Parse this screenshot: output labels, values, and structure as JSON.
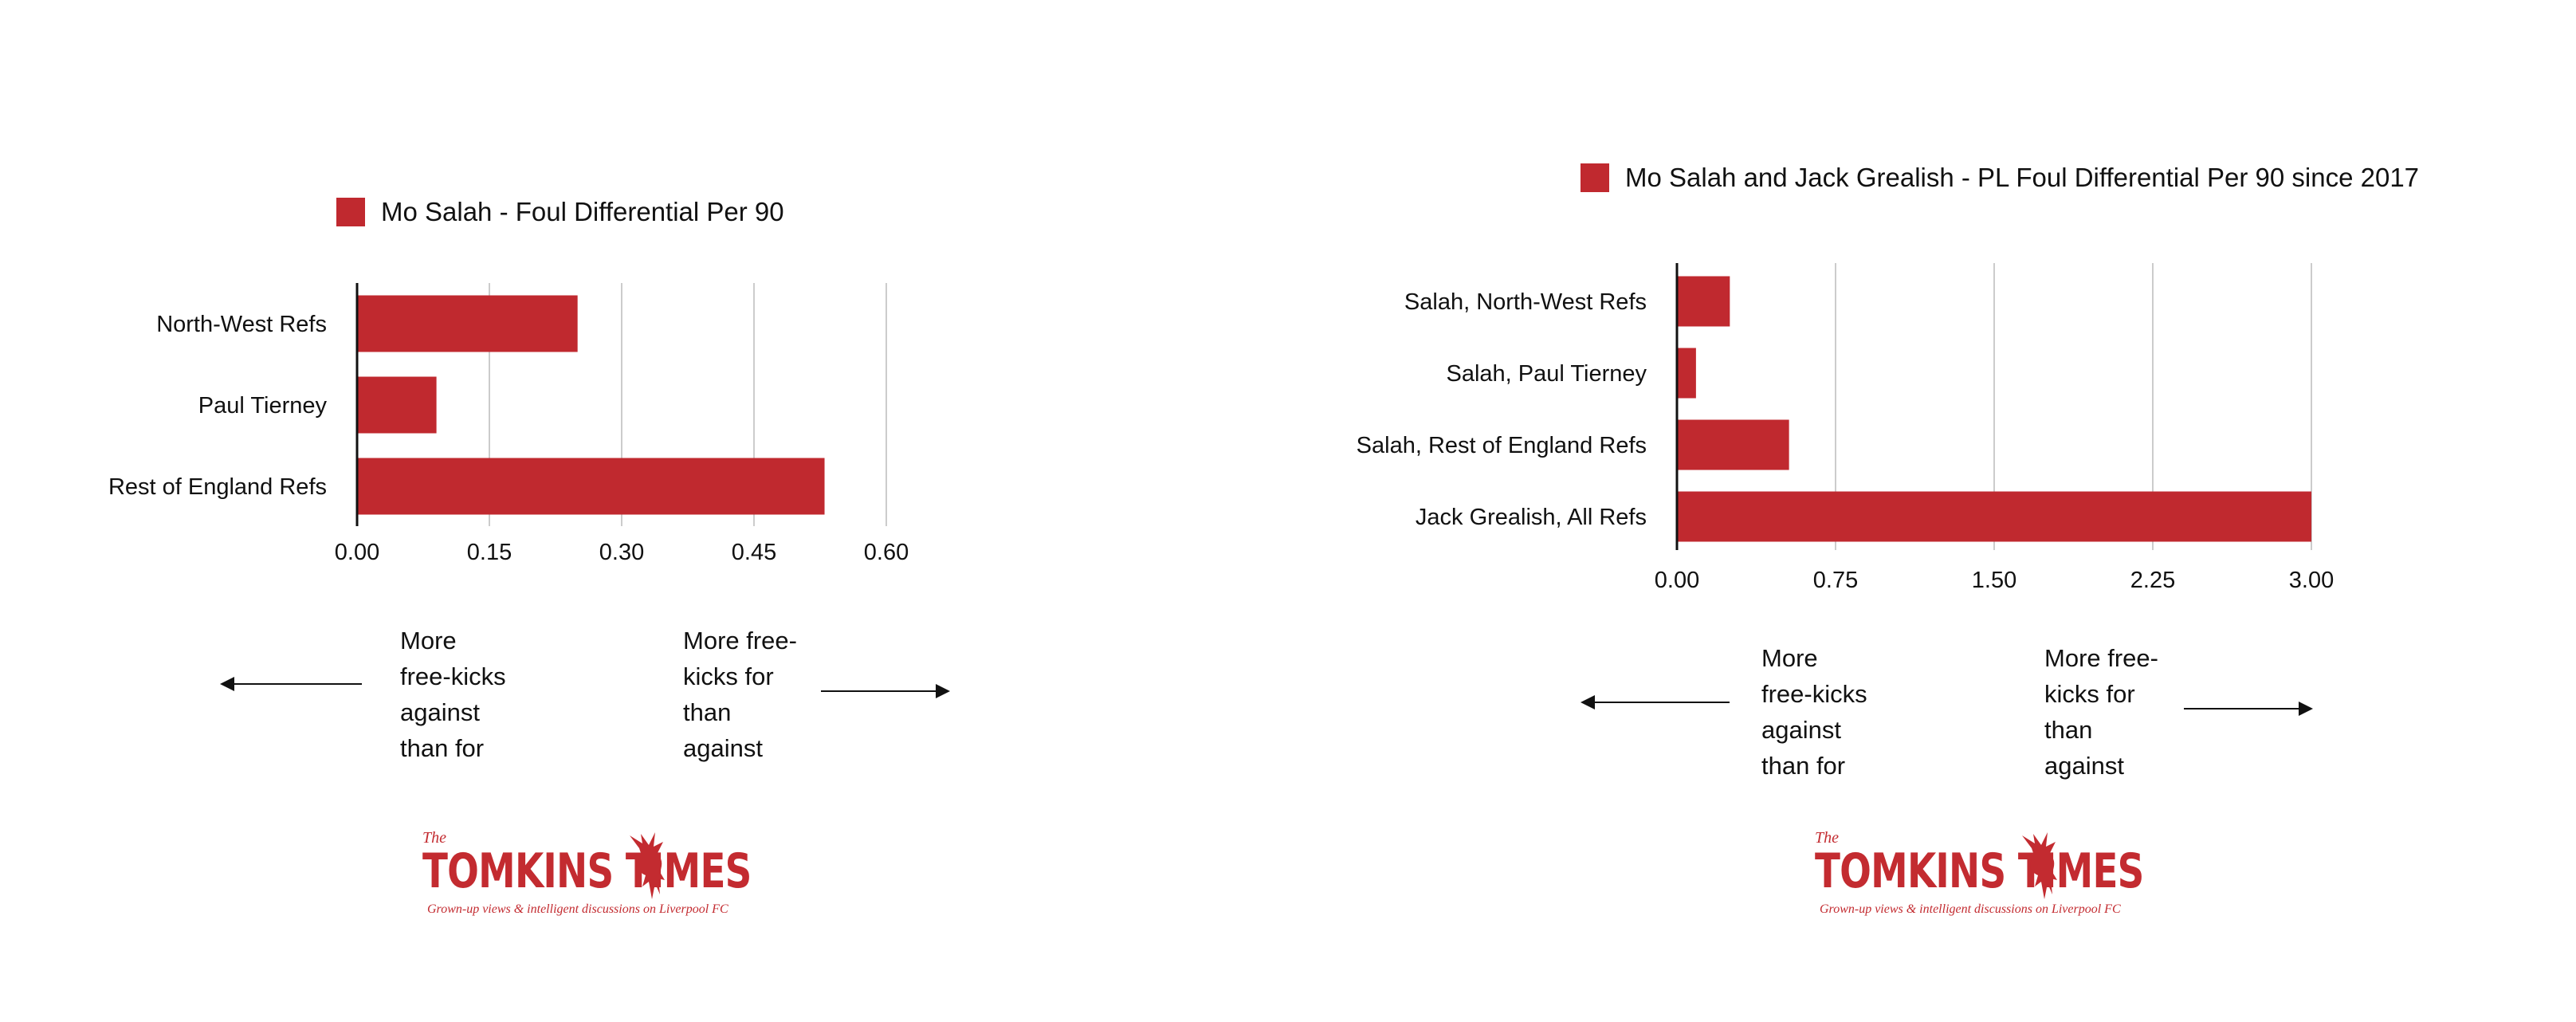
{
  "colors": {
    "bar": "#c0292f",
    "grid": "#cccccc",
    "axis": "#111111",
    "brand": "#c32b30"
  },
  "chart_data": [
    {
      "type": "bar",
      "orientation": "horizontal",
      "legend": [
        "Mo Salah - Foul Differential Per 90"
      ],
      "legend_position": "top",
      "categories": [
        "North-West Refs",
        "Paul Tierney",
        "Rest of England Refs"
      ],
      "series": [
        {
          "name": "Mo Salah - Foul Differential Per 90",
          "values": [
            0.25,
            0.09,
            0.53
          ]
        }
      ],
      "x_ticks": [
        "0.00",
        "0.15",
        "0.30",
        "0.45",
        "0.60"
      ],
      "xlim": [
        0,
        0.6
      ],
      "grid": "vertical"
    },
    {
      "type": "bar",
      "orientation": "horizontal",
      "legend": [
        "Mo Salah and Jack Grealish - PL Foul Differential Per 90 since 2017"
      ],
      "legend_position": "top",
      "categories": [
        "Salah, North-West Refs",
        "Salah, Paul Tierney",
        "Salah, Rest of England Refs",
        "Jack Grealish, All Refs"
      ],
      "series": [
        {
          "name": "Mo Salah and Jack Grealish - PL Foul Differential Per 90 since 2017",
          "values": [
            0.25,
            0.09,
            0.53,
            3.0
          ]
        }
      ],
      "x_ticks": [
        "0.00",
        "0.75",
        "1.50",
        "2.25",
        "3.00"
      ],
      "xlim": [
        0,
        3
      ],
      "grid": "vertical"
    }
  ],
  "annotations": {
    "left": {
      "against": "More\nfree-kicks\nagainst\nthan for",
      "for": "More free-\nkicks for\nthan\nagainst"
    },
    "right": {
      "against": "More\nfree-kicks\nagainst\nthan for",
      "for": "More free-\nkicks for\nthan\nagainst"
    }
  },
  "logo": {
    "the": "The",
    "wordmark": "TOMKINS  TIMES",
    "tagline": "Grown-up views & intelligent discussions on Liverpool FC",
    "icon": "liverbird-icon"
  }
}
